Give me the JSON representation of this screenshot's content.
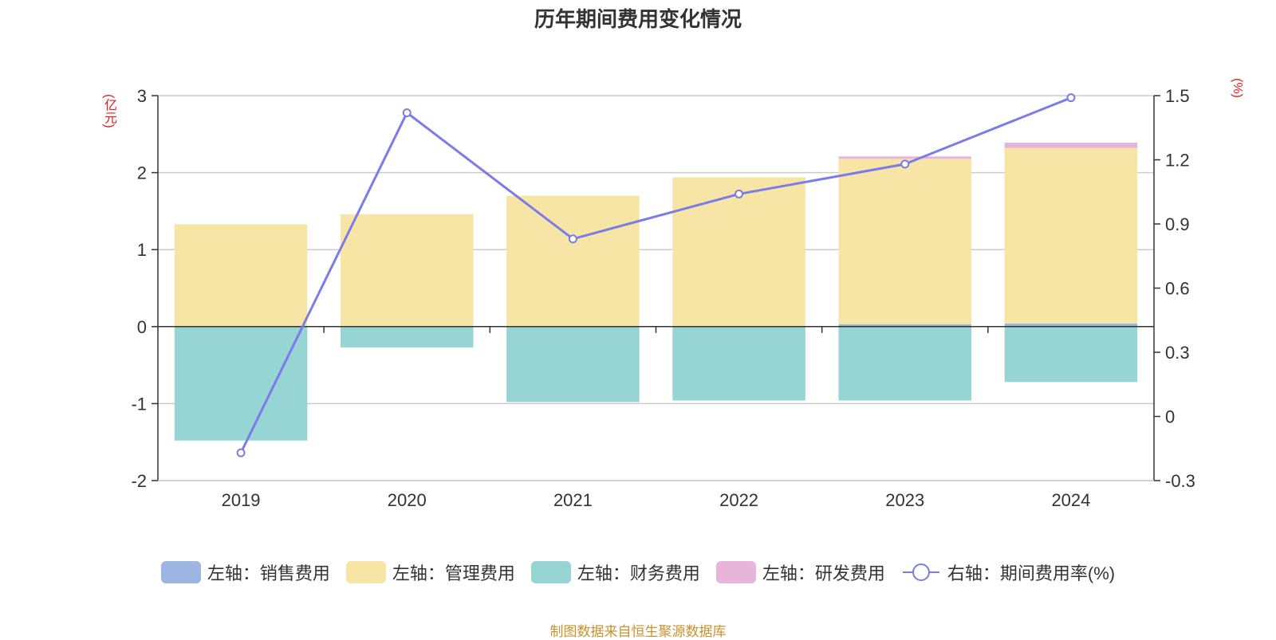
{
  "chart_data": {
    "type": "bar",
    "title": "历年期间费用变化情况",
    "left_unit": "(亿元)",
    "right_unit": "(%)",
    "categories": [
      "2019",
      "2020",
      "2021",
      "2022",
      "2023",
      "2024"
    ],
    "left_axis": {
      "ticks": [
        "3",
        "2",
        "1",
        "0",
        "-1",
        "-2"
      ],
      "ylim": [
        -2,
        3
      ]
    },
    "right_axis": {
      "ticks": [
        "1.5",
        "1.2",
        "0.9",
        "0.6",
        "0.3",
        "0",
        "-0.3"
      ],
      "ylim": [
        -0.3,
        1.5
      ]
    },
    "grid": true,
    "legend_position": "bottom",
    "series": [
      {
        "name": "左轴：销售费用",
        "axis": "left",
        "type": "bar",
        "color": "#9db5e2",
        "values": [
          0.0,
          0.01,
          0.0,
          0.0,
          0.03,
          0.04
        ]
      },
      {
        "name": "左轴：管理费用",
        "axis": "left",
        "type": "bar",
        "color": "#f7e5a5",
        "values": [
          1.33,
          1.45,
          1.7,
          1.94,
          2.15,
          2.28
        ]
      },
      {
        "name": "左轴：财务费用",
        "axis": "left",
        "type": "bar",
        "color": "#97d4d4",
        "values": [
          -1.48,
          -0.27,
          -0.98,
          -0.96,
          -0.96,
          -0.72
        ]
      },
      {
        "name": "左轴：研发费用",
        "axis": "left",
        "type": "bar",
        "color": "#e7b5d9",
        "values": [
          0.0,
          0.0,
          0.0,
          0.0,
          0.03,
          0.07
        ]
      },
      {
        "name": "右轴：期间费用率(%)",
        "axis": "right",
        "type": "line",
        "color": "#7b7bea",
        "values": [
          -0.17,
          1.42,
          0.83,
          1.04,
          1.18,
          1.49
        ]
      }
    ]
  },
  "source": "制图数据来自恒生聚源数据库"
}
